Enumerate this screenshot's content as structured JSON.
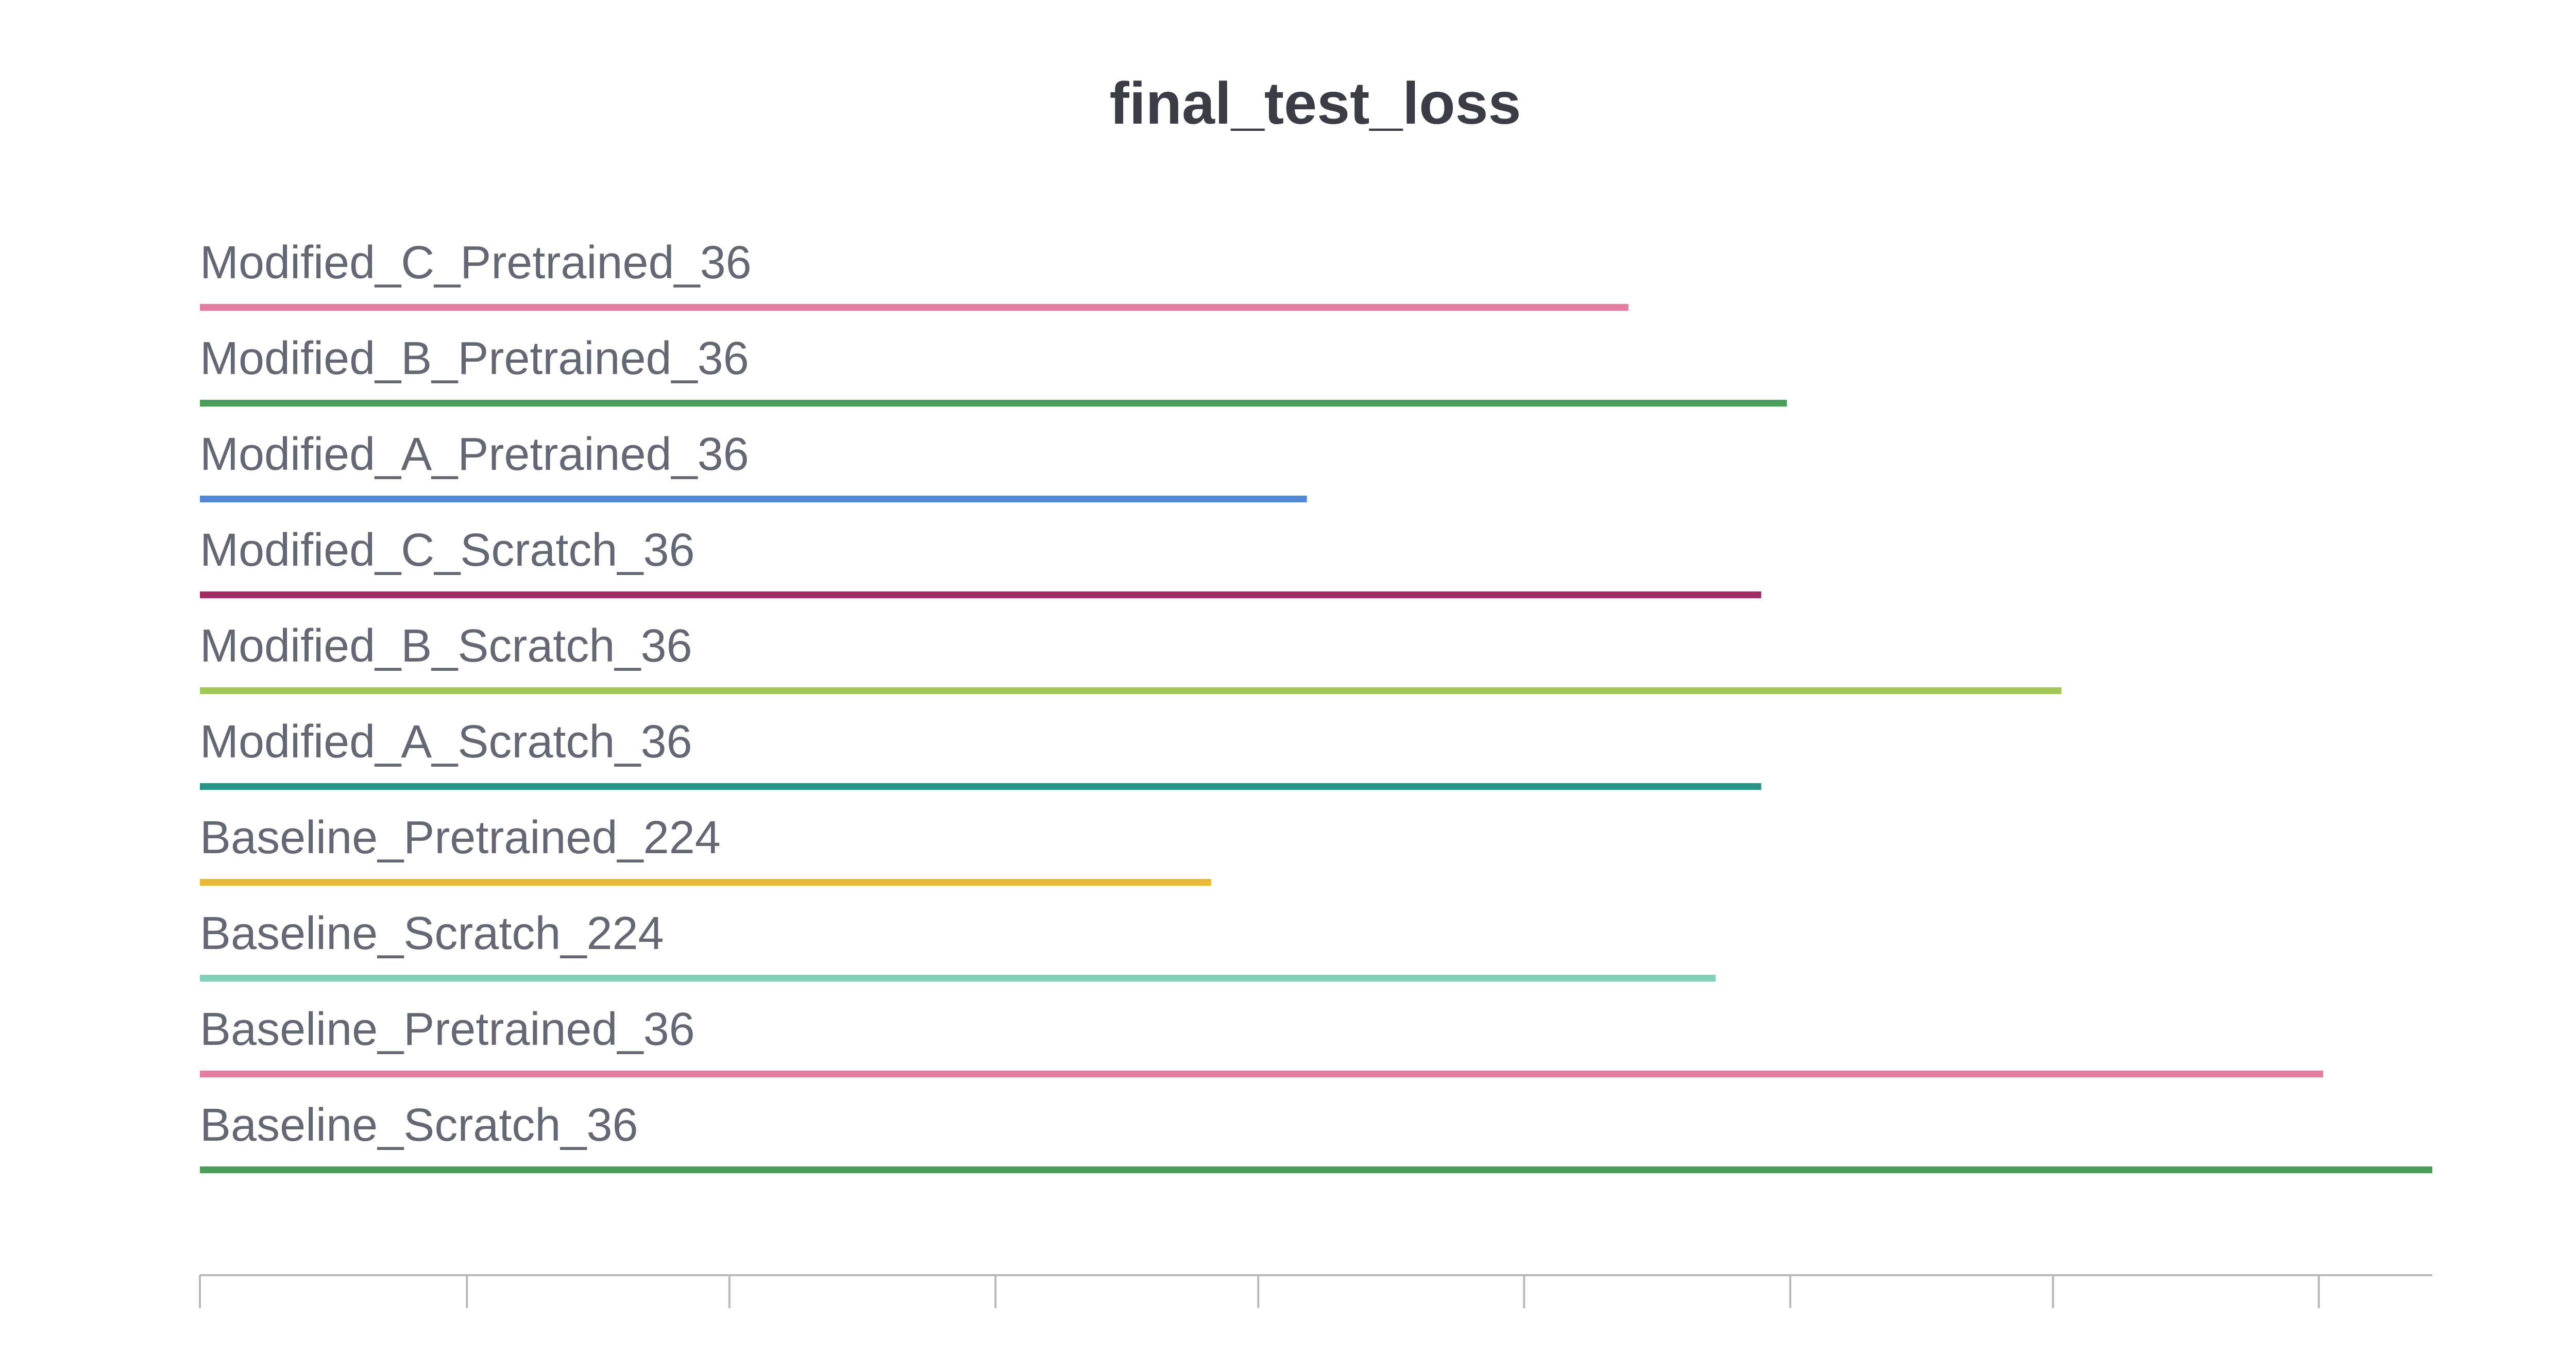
{
  "chart_data": {
    "type": "bar",
    "orientation": "horizontal",
    "title": "final_test_loss",
    "xlabel": "",
    "ylabel": "",
    "grid": false,
    "legend": "none",
    "tick_labels_visible": false,
    "xlim": [
      0,
      1
    ],
    "x_ticks": [
      0,
      0.1196,
      0.2372,
      0.3564,
      0.4741,
      0.5932,
      0.7124,
      0.8301,
      0.9492
    ],
    "categories": [
      "Modified_C_Pretrained_36",
      "Modified_B_Pretrained_36",
      "Modified_A_Pretrained_36",
      "Modified_C_Scratch_36",
      "Modified_B_Scratch_36",
      "Modified_A_Scratch_36",
      "Baseline_Pretrained_224",
      "Baseline_Scratch_224",
      "Baseline_Pretrained_36",
      "Baseline_Scratch_36"
    ],
    "values": [
      0.6399,
      0.7109,
      0.4959,
      0.6994,
      0.8339,
      0.6994,
      0.453,
      0.679,
      0.9511,
      1.0
    ],
    "colors": [
      "#e17ea0",
      "#4d9a5d",
      "#5387d6",
      "#a02a62",
      "#a0c75a",
      "#2a9486",
      "#e9b93a",
      "#85cfba",
      "#e17ea0",
      "#4d9a5d"
    ]
  }
}
